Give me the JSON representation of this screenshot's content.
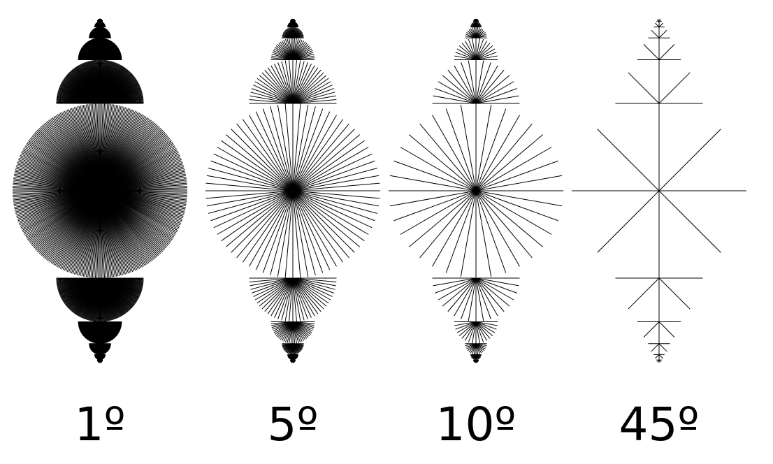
{
  "figure": {
    "line_color": "#000000",
    "background": "#ffffff",
    "panels": [
      {
        "label": "1º",
        "angle_step_deg": 1
      },
      {
        "label": "5º",
        "angle_step_deg": 5
      },
      {
        "label": "10º",
        "angle_step_deg": 10
      },
      {
        "label": "45º",
        "angle_step_deg": 45
      }
    ]
  }
}
